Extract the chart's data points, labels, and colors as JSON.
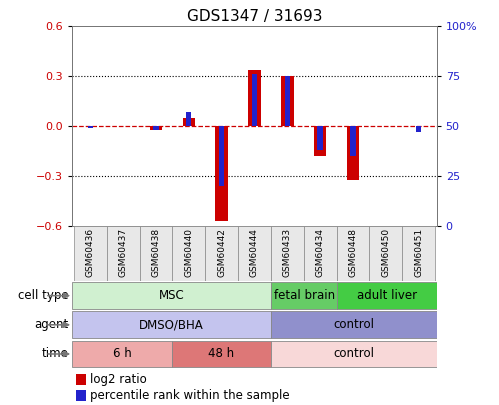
{
  "title": "GDS1347 / 31693",
  "samples": [
    "GSM60436",
    "GSM60437",
    "GSM60438",
    "GSM60440",
    "GSM60442",
    "GSM60444",
    "GSM60433",
    "GSM60434",
    "GSM60448",
    "GSM60450",
    "GSM60451"
  ],
  "log2_ratio": [
    0.0,
    0.0,
    -0.02,
    0.05,
    -0.57,
    0.34,
    0.3,
    -0.18,
    -0.32,
    0.0,
    0.0
  ],
  "percentile_rank": [
    49,
    50,
    48,
    57,
    20,
    76,
    75,
    38,
    35,
    50,
    47
  ],
  "ylim_left": [
    -0.6,
    0.6
  ],
  "ylim_right": [
    0,
    100
  ],
  "yticks_left": [
    -0.6,
    -0.3,
    0.0,
    0.3,
    0.6
  ],
  "yticks_right": [
    0,
    25,
    50,
    75,
    100
  ],
  "ytick_right_labels": [
    "0",
    "25",
    "50",
    "75",
    "100%"
  ],
  "bar_color_red": "#cc0000",
  "bar_color_blue": "#2222cc",
  "zero_line_color": "#cc0000",
  "cell_type_groups": [
    {
      "label": "MSC",
      "start": 0,
      "end": 5,
      "color": "#d0f0d0"
    },
    {
      "label": "fetal brain",
      "start": 6,
      "end": 7,
      "color": "#66cc66"
    },
    {
      "label": "adult liver",
      "start": 8,
      "end": 10,
      "color": "#44cc44"
    }
  ],
  "agent_groups": [
    {
      "label": "DMSO/BHA",
      "start": 0,
      "end": 5,
      "color": "#c4c4ee"
    },
    {
      "label": "control",
      "start": 6,
      "end": 10,
      "color": "#9090cc"
    }
  ],
  "time_groups": [
    {
      "label": "6 h",
      "start": 0,
      "end": 2,
      "color": "#eeaaaa"
    },
    {
      "label": "48 h",
      "start": 3,
      "end": 5,
      "color": "#dd7777"
    },
    {
      "label": "control",
      "start": 6,
      "end": 10,
      "color": "#f8d8d8"
    }
  ],
  "row_labels": [
    "cell type",
    "agent",
    "time"
  ],
  "bg_color": "#ffffff",
  "tick_fontsize": 8,
  "title_fontsize": 11
}
